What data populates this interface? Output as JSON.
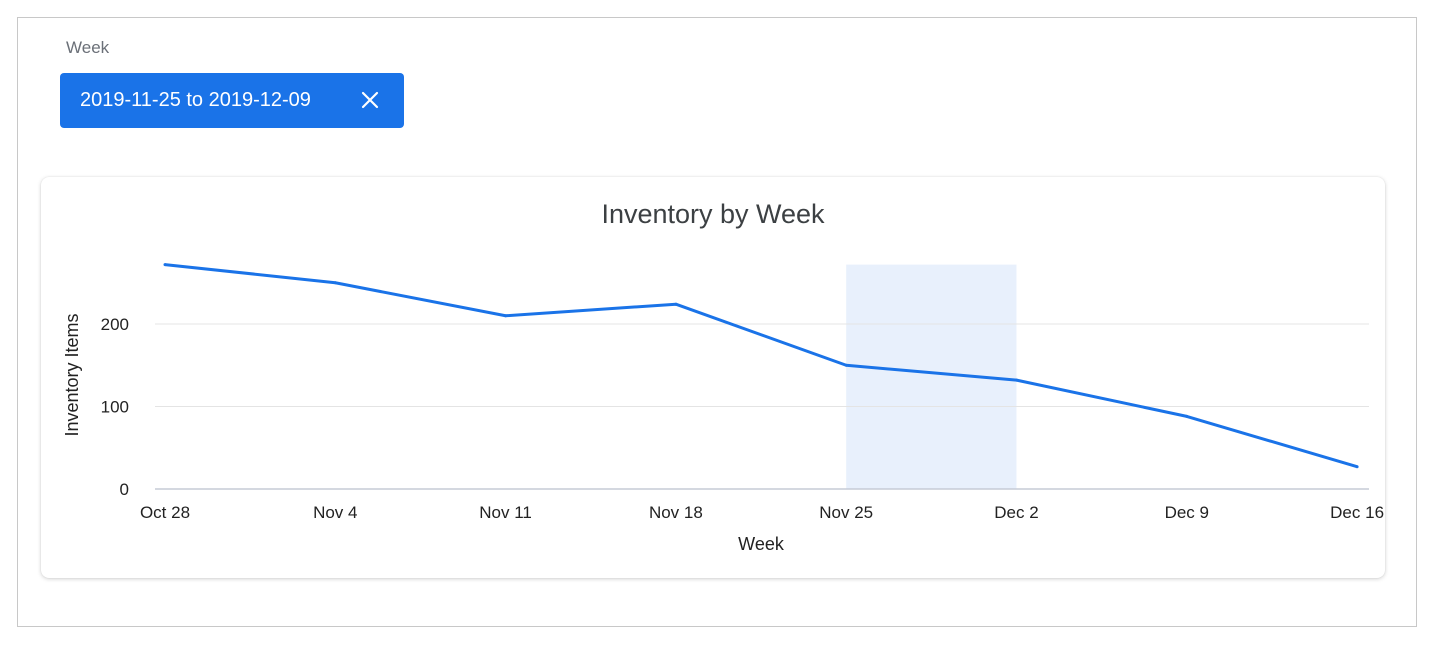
{
  "filter": {
    "label": "Week",
    "chip_text": "2019-11-25 to 2019-12-09",
    "chip_color": "#1a73e8",
    "remove_icon": "close-icon"
  },
  "chart_data": {
    "type": "line",
    "title": "Inventory by Week",
    "xlabel": "Week",
    "ylabel": "Inventory Items",
    "categories": [
      "Oct 28",
      "Nov 4",
      "Nov 11",
      "Nov 18",
      "Nov 25",
      "Dec 2",
      "Dec 9",
      "Dec 16"
    ],
    "series": [
      {
        "values": [
          272,
          250,
          210,
          224,
          150,
          132,
          88,
          27
        ],
        "color": "#1a73e8"
      }
    ],
    "yticks": [
      "0",
      "100",
      "200"
    ],
    "ylim": [
      0,
      272
    ],
    "grid": true,
    "highlight": {
      "from": "Nov 25",
      "to": "Dec 2",
      "color": "#e8f0fc"
    }
  }
}
